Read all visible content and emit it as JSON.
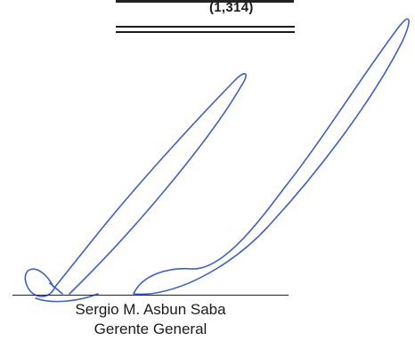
{
  "summary": {
    "amount": "(1,314)"
  },
  "signature_block": {
    "name": "Sergio M. Asbun Saba",
    "title": "Gerente General"
  },
  "colors": {
    "ink": "#1a1a1a",
    "signature_ink": "#3f5fc8"
  }
}
